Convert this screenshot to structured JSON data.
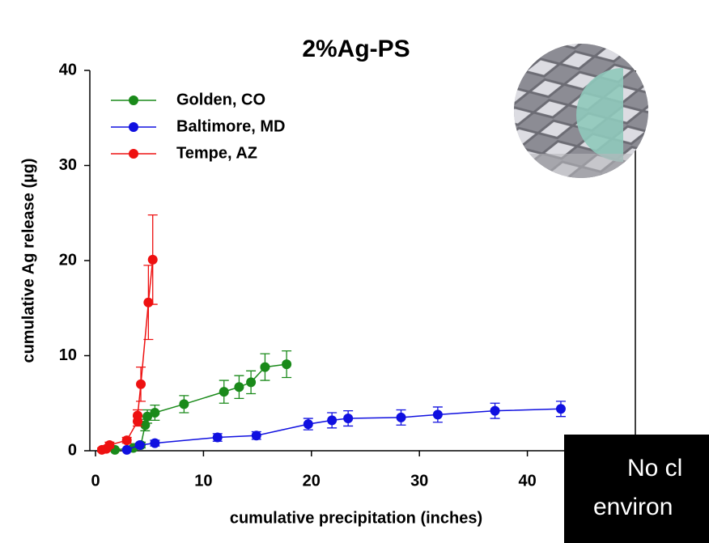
{
  "chart_data": {
    "type": "scatter",
    "title": "2%Ag-PS",
    "x_label": "cumulative precipitation (inches)",
    "y_label": "cumulative Ag release (µg)",
    "xlim": [
      0,
      50
    ],
    "ylim": [
      0,
      40
    ],
    "xticks": [
      0,
      10,
      20,
      30,
      40
    ],
    "yticks": [
      0,
      10,
      20,
      30,
      40
    ],
    "legend": "upper left",
    "series": [
      {
        "name": "Golden, CO",
        "color": "#1a8a1a",
        "x": [
          1.8,
          3.5,
          4.2,
          4.6,
          4.8,
          5.5,
          8.2,
          11.9,
          13.3,
          14.4,
          15.7,
          17.7
        ],
        "values": [
          0.1,
          0.3,
          0.6,
          2.7,
          3.6,
          4.0,
          4.9,
          6.2,
          6.7,
          7.2,
          8.8,
          9.1
        ],
        "errors": [
          0.1,
          0.2,
          0.3,
          0.6,
          0.7,
          0.8,
          0.9,
          1.2,
          1.2,
          1.2,
          1.4,
          1.4
        ]
      },
      {
        "name": "Baltimore, MD",
        "color": "#1010e0",
        "x": [
          2.9,
          4.1,
          5.5,
          11.3,
          14.9,
          19.7,
          21.9,
          23.4,
          28.3,
          31.7,
          37.0,
          43.1
        ],
        "values": [
          0.1,
          0.6,
          0.8,
          1.4,
          1.6,
          2.8,
          3.2,
          3.4,
          3.5,
          3.8,
          4.2,
          4.4
        ],
        "errors": [
          0.1,
          0.2,
          0.3,
          0.4,
          0.4,
          0.6,
          0.8,
          0.8,
          0.8,
          0.8,
          0.8,
          0.8
        ]
      },
      {
        "name": "Tempe, AZ",
        "color": "#ee1111",
        "x": [
          0.6,
          1.0,
          1.3,
          2.9,
          3.9,
          3.9,
          4.2,
          4.9,
          5.3
        ],
        "values": [
          0.1,
          0.2,
          0.6,
          1.1,
          3.1,
          3.7,
          7.0,
          15.6,
          20.1
        ],
        "errors": [
          0.2,
          0.2,
          0.3,
          0.3,
          0.5,
          0.6,
          1.8,
          3.9,
          4.7
        ]
      }
    ]
  },
  "annotation": {
    "lines": [
      "No cl",
      "environ"
    ]
  }
}
